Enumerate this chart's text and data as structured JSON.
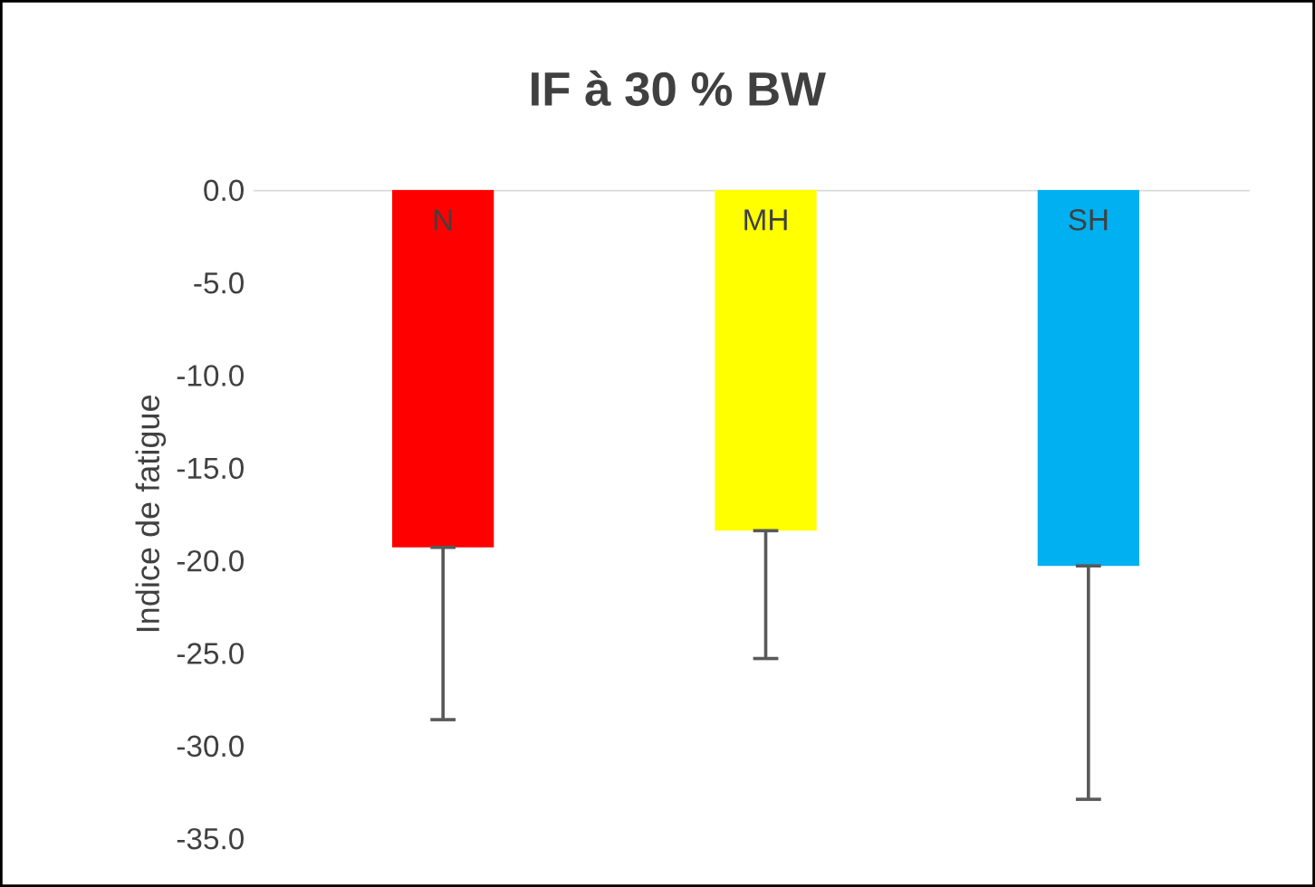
{
  "chart_data": {
    "type": "bar",
    "title": "IF à 30 % BW",
    "ylabel": "Indice de fatigue",
    "categories": [
      "N",
      "MH",
      "SH"
    ],
    "values": [
      -19.3,
      -18.4,
      -20.3
    ],
    "colors": [
      "#ff0000",
      "#ffff00",
      "#00b0f0"
    ],
    "errors": [
      [
        -28.6,
        -19.3
      ],
      [
        -25.3,
        -18.4
      ],
      [
        -32.9,
        -20.3
      ]
    ],
    "ylim": [
      -35,
      0
    ],
    "yticks": [
      {
        "value": 0,
        "label": "0.0"
      },
      {
        "value": -5,
        "label": "-5.0"
      },
      {
        "value": -10,
        "label": "-10.0"
      },
      {
        "value": -15,
        "label": "-15.0"
      },
      {
        "value": -20,
        "label": "-20.0"
      },
      {
        "value": -25,
        "label": "-25.0"
      },
      {
        "value": -30,
        "label": "-30.0"
      },
      {
        "value": -35,
        "label": "-35.0"
      }
    ],
    "grid": false,
    "legend": false
  }
}
